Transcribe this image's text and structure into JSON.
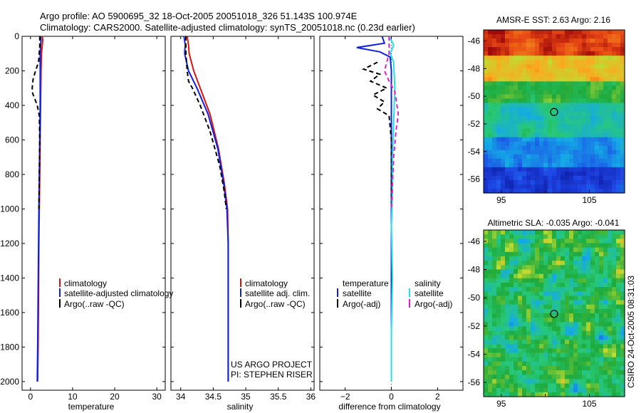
{
  "header": {
    "line1": "Argo profile: AO 5900695_32 18-Oct-2005 20051018_326 51.143S 100.974E",
    "line2": "Climatology: CARS2000. Satellite-adjusted climatology: synTS_20051018.nc (0.23d earlier)"
  },
  "colors": {
    "climatology": "#e01010",
    "satellite": "#1020e0",
    "argo": "#000000",
    "sal_satellite": "#20e0e8",
    "sal_argo": "#e020d0",
    "grey": "#888888"
  },
  "chart_data": [
    {
      "id": "temperature",
      "type": "line",
      "xlabel": "temperature",
      "ylabel": "",
      "xlim": [
        -2,
        32
      ],
      "ylim": [
        2050,
        0
      ],
      "xticks": [
        0,
        10,
        20,
        30
      ],
      "xtick_labels": [
        "0",
        "10",
        "20",
        "30"
      ],
      "yticks": [
        0,
        200,
        400,
        600,
        800,
        1000,
        1200,
        1400,
        1600,
        1800,
        2000
      ],
      "ytick_labels": [
        "0",
        "200",
        "400",
        "600",
        "800",
        "1000",
        "1200",
        "1400",
        "1600",
        "1800",
        "2000"
      ],
      "legend": [
        "climatology",
        "satellite-adjusted climatology",
        "Argo(..raw -QC)"
      ],
      "series": [
        {
          "name": "climatology",
          "style": "solid",
          "color_key": "climatology",
          "x": [
            2.8,
            2.9,
            2.8,
            2.6,
            2.5,
            2.4,
            2.3,
            2.2,
            2.1,
            2.0,
            1.9,
            1.8,
            1.7
          ],
          "y": [
            0,
            20,
            50,
            100,
            200,
            400,
            600,
            800,
            1000,
            1200,
            1500,
            1800,
            2000
          ]
        },
        {
          "name": "satellite-adjusted climatology",
          "style": "solid",
          "color_key": "satellite",
          "x": [
            2.4,
            2.5,
            2.4,
            2.3,
            2.3,
            2.3,
            2.2,
            2.1,
            2.0,
            1.9,
            1.8,
            1.7,
            1.6
          ],
          "y": [
            0,
            20,
            50,
            100,
            200,
            400,
            600,
            800,
            1000,
            1200,
            1500,
            1800,
            2000
          ]
        },
        {
          "name": "Argo(..raw -QC)",
          "style": "dashed",
          "color_key": "argo",
          "x": [
            2.2,
            2.2,
            1.9,
            1.2,
            0.6,
            0.4,
            0.5,
            1.0,
            1.6,
            2.1,
            2.2,
            2.1,
            2.0
          ],
          "y": [
            0,
            60,
            150,
            200,
            250,
            300,
            330,
            360,
            400,
            460,
            600,
            800,
            1000
          ]
        }
      ]
    },
    {
      "id": "salinity",
      "type": "line",
      "xlabel": "salinity",
      "ylabel": "",
      "xlim": [
        33.85,
        36.05
      ],
      "ylim": [
        2050,
        0
      ],
      "xticks": [
        34,
        34.5,
        35,
        35.5,
        36
      ],
      "xtick_labels": [
        "34",
        "34.5",
        "35",
        "35.5",
        "36"
      ],
      "legend": [
        "climatology",
        "satellite adj. clim.",
        "Argo(..raw -QC)"
      ],
      "annotation": [
        "US ARGO PROJECT",
        "PI: STEPHEN RISER"
      ],
      "series": [
        {
          "name": "climatology",
          "style": "solid",
          "color_key": "climatology",
          "x": [
            34.1,
            34.12,
            34.13,
            34.2,
            34.3,
            34.45,
            34.58,
            34.67,
            34.72,
            34.73,
            34.73,
            34.73
          ],
          "y": [
            0,
            50,
            100,
            200,
            300,
            450,
            650,
            850,
            1000,
            1200,
            1600,
            2000
          ]
        },
        {
          "name": "satellite adj. clim.",
          "style": "solid",
          "color_key": "satellite",
          "x": [
            34.05,
            34.07,
            34.06,
            34.12,
            34.25,
            34.42,
            34.57,
            34.66,
            34.71,
            34.73,
            34.73,
            34.73
          ],
          "y": [
            0,
            50,
            100,
            200,
            300,
            450,
            650,
            850,
            1000,
            1200,
            1600,
            2000
          ]
        },
        {
          "name": "Argo(..raw -QC)",
          "style": "dashed",
          "color_key": "argo",
          "x": [
            34.08,
            34.08,
            34.1,
            34.12,
            34.18,
            34.3,
            34.45,
            34.6,
            34.67,
            34.7
          ],
          "y": [
            0,
            100,
            200,
            260,
            300,
            400,
            550,
            750,
            900,
            1000
          ]
        }
      ]
    },
    {
      "id": "difference",
      "type": "line",
      "xlabel": "difference from climatology",
      "ylabel": "",
      "xlim": [
        -3.1,
        3.1
      ],
      "ylim": [
        2050,
        0
      ],
      "xticks": [
        -2,
        0,
        2
      ],
      "xtick_labels": [
        "−2",
        "0",
        "2"
      ],
      "legend_temperature": [
        "temperature",
        "satellite",
        "Argo(-adj)"
      ],
      "legend_salinity": [
        "salinity",
        "satellite",
        "Argo(-adj)"
      ],
      "series": [
        {
          "name": "temperature satellite",
          "style": "solid",
          "color_key": "satellite",
          "x": [
            -0.4,
            -0.3,
            -1.5,
            -0.5,
            -0.05,
            0,
            0,
            0,
            0,
            0,
            0,
            0
          ],
          "y": [
            0,
            40,
            65,
            90,
            120,
            200,
            400,
            600,
            1000,
            1400,
            1800,
            2000
          ]
        },
        {
          "name": "temperature Argo(-adj)",
          "style": "dashed",
          "color_key": "argo",
          "x": [
            -0.6,
            -1.2,
            -0.5,
            -0.9,
            -0.2,
            -0.8,
            -0.3,
            -0.6,
            -0.1,
            0,
            0
          ],
          "y": [
            150,
            190,
            220,
            260,
            300,
            340,
            380,
            420,
            460,
            600,
            1000
          ]
        },
        {
          "name": "salinity satellite",
          "style": "solid",
          "color_key": "sal_satellite",
          "x": [
            -0.1,
            0.1,
            -0.05,
            0.1,
            0.15,
            0.1,
            0.05,
            0.05,
            0.0,
            0.05,
            0.0,
            0.0
          ],
          "y": [
            0,
            50,
            100,
            150,
            300,
            500,
            700,
            900,
            1100,
            1400,
            1700,
            2000
          ]
        },
        {
          "name": "salinity Argo(-adj)",
          "style": "dashed",
          "color_key": "sal_argo",
          "x": [
            -0.1,
            -0.1,
            -0.3,
            -0.1,
            0.15,
            0.3,
            0.2,
            0.1,
            0.0
          ],
          "y": [
            0,
            100,
            200,
            260,
            320,
            450,
            550,
            700,
            1000
          ]
        }
      ]
    },
    {
      "id": "sst_map",
      "type": "heatmap",
      "title": "AMSR-E SST: 2.63 Argo: 2.16",
      "xlim": [
        93,
        109
      ],
      "ylim": [
        -57,
        -45.2
      ],
      "xticks": [
        95,
        100,
        105
      ],
      "xtick_labels": [
        "95",
        "",
        "105"
      ],
      "yticks": [
        -46,
        -48,
        -50,
        -52,
        -54,
        -56
      ],
      "ytick_labels": [
        "-46",
        "-48",
        "-50",
        "-52",
        "-54",
        "-56"
      ],
      "marker": {
        "lon": 101.0,
        "lat": -51.14
      },
      "value_bands": [
        {
          "upto_lat": -47.2,
          "value": 0.95
        },
        {
          "upto_lat": -49.0,
          "value": 0.75
        },
        {
          "upto_lat": -50.5,
          "value": 0.55
        },
        {
          "upto_lat": -53.0,
          "value": 0.4
        },
        {
          "upto_lat": -55.0,
          "value": 0.25
        },
        {
          "upto_lat": -57.0,
          "value": 0.12
        }
      ]
    },
    {
      "id": "sla_map",
      "type": "heatmap",
      "title": "Altimetric SLA: -0.035 Argo: -0.041",
      "xlim": [
        93,
        109
      ],
      "ylim": [
        -57,
        -45.2
      ],
      "xticks": [
        95,
        100,
        105
      ],
      "xtick_labels": [
        "95",
        "",
        "105"
      ],
      "yticks": [
        -46,
        -48,
        -50,
        -52,
        -54,
        -56
      ],
      "ytick_labels": [
        "-46",
        "-48",
        "-50",
        "-52",
        "-54",
        "-56"
      ],
      "marker": {
        "lon": 101.0,
        "lat": -51.14
      },
      "base_value": 0.5
    }
  ],
  "side_label": "CSIRO 24-Oct-2005 08:31:03"
}
